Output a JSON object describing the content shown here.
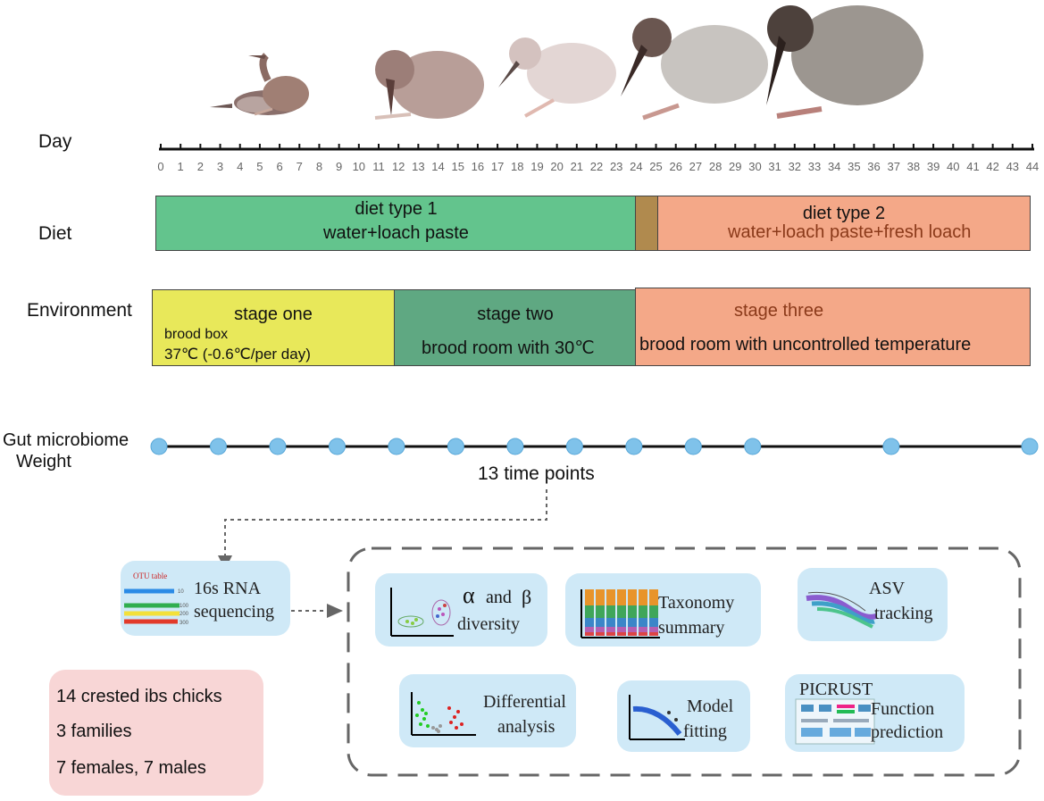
{
  "axis": {
    "day_label": "Day",
    "ticks": [
      "0",
      "1",
      "2",
      "3",
      "4",
      "5",
      "6",
      "7",
      "8",
      "9",
      "10",
      "11",
      "12",
      "13",
      "14",
      "15",
      "16",
      "17",
      "18",
      "19",
      "20",
      "21",
      "22",
      "23",
      "24",
      "25",
      "26",
      "27",
      "28",
      "29",
      "30",
      "31",
      "32",
      "33",
      "34",
      "35",
      "36",
      "37",
      "38",
      "39",
      "40",
      "41",
      "42",
      "43",
      "44"
    ]
  },
  "rows": {
    "diet": "Diet",
    "environment": "Environment",
    "gut": "Gut microbiome",
    "weight": "Weight"
  },
  "diet": {
    "type1_title": "diet type 1",
    "type1_desc": "water+loach paste",
    "type2_title": "diet type 2",
    "type2_desc": "water+loach paste+fresh loach"
  },
  "environment": {
    "stage1_title": "stage one",
    "stage1_line1": "brood box",
    "stage1_line2": "37℃  (-0.6℃/per day)",
    "stage2_title": "stage two",
    "stage2_desc": "brood room with 30℃",
    "stage3_title": "stage three",
    "stage3_desc": "brood room with uncontrolled temperature"
  },
  "timepoints": {
    "caption": "13 time points"
  },
  "sequencing": {
    "line1": "16s RNA",
    "line2": "sequencing",
    "otu_title": "OTU table",
    "otu_vals": [
      "10",
      "100",
      "200",
      "300"
    ]
  },
  "analyses": {
    "alpha_sym": "α",
    "alpha_and": "and",
    "beta_sym": "β",
    "diversity": "diversity",
    "taxonomy1": "Taxonomy",
    "taxonomy2": "summary",
    "asv1": "ASV",
    "asv2": "tracking",
    "diff1": "Differential",
    "diff2": "analysis",
    "model1": "Model",
    "model2": "fitting",
    "picrust": "PICRUST",
    "func1": "Function",
    "func2": "prediction"
  },
  "subjects": {
    "line1": "14 crested ibs chicks",
    "line2": "3 families",
    "line3": "7 females,  7 males"
  },
  "colors": {
    "diet1": "#63c48d",
    "diet_overlap": "#b08a4e",
    "diet2": "#f4a888",
    "stage1": "#e8e85a",
    "stage2": "#5fa882",
    "stage3": "#f4a888",
    "dot": "#7fc2ea",
    "card": "#cfe9f7",
    "subjects_box": "#f8d6d6"
  }
}
